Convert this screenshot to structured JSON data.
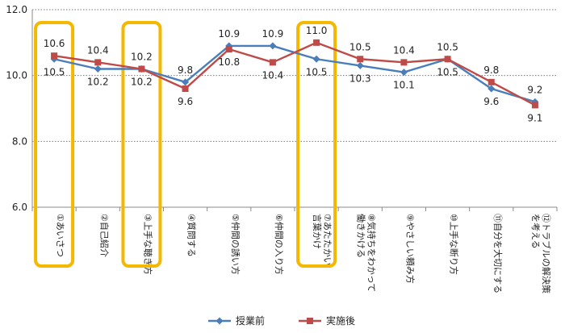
{
  "chart_data": {
    "type": "line",
    "title": "",
    "xlabel": "",
    "ylabel": "",
    "ylim": [
      6.0,
      12.0
    ],
    "yticks": [
      "6.0",
      "8.0",
      "10.0",
      "12.0"
    ],
    "grid": "horizontal-dotted",
    "legend_position": "bottom-center",
    "categories": [
      "①あいさつ",
      "②自己紹介",
      "③上手な聴き方",
      "④質問する",
      "⑤仲間の誘い方",
      "⑥仲間の入り方",
      "⑦あたたかい言葉かけ",
      "⑧気持ちをわかって働きかける",
      "⑨やさしい頼み方",
      "⑩上手な断り方",
      "⑪自分を大切にする",
      "⑫トラブルの解決策を考える"
    ],
    "category_lines": [
      [
        "①あいさつ"
      ],
      [
        "②自己紹介"
      ],
      [
        "③上手な聴き方"
      ],
      [
        "④質問する"
      ],
      [
        "⑤仲間の誘い方"
      ],
      [
        "⑥仲間の入り方"
      ],
      [
        "⑦あたたかい",
        "言葉かけ"
      ],
      [
        "⑧気持ちをわかって",
        "働きかける"
      ],
      [
        "⑨やさしい頼み方"
      ],
      [
        "⑩上手な断り方"
      ],
      [
        "⑪自分を大切にする"
      ],
      [
        "⑫トラブルの解決策",
        "を考える"
      ]
    ],
    "series": [
      {
        "name": "授業前",
        "color": "#4a7ebb",
        "marker": "diamond",
        "values": [
          10.5,
          10.2,
          10.2,
          9.8,
          10.9,
          10.9,
          10.5,
          10.3,
          10.1,
          10.5,
          9.6,
          9.2
        ],
        "labels": [
          "10.5",
          "10.2",
          "10.2",
          "9.8",
          "10.9",
          "10.9",
          "10.5",
          "10.3",
          "10.1",
          "10.5",
          "9.6",
          "9.2"
        ]
      },
      {
        "name": "実施後",
        "color": "#be4b48",
        "marker": "square",
        "values": [
          10.6,
          10.4,
          10.2,
          9.6,
          10.8,
          10.4,
          11.0,
          10.5,
          10.4,
          10.5,
          9.8,
          9.1
        ],
        "labels": [
          "10.6",
          "10.4",
          "10.2",
          "9.6",
          "10.8",
          "10.4",
          "11.0",
          "10.5",
          "10.4",
          "10.5",
          "9.8",
          "9.1"
        ]
      }
    ],
    "highlighted_categories": [
      0,
      2,
      6
    ],
    "highlight_color": "#f5b800"
  }
}
